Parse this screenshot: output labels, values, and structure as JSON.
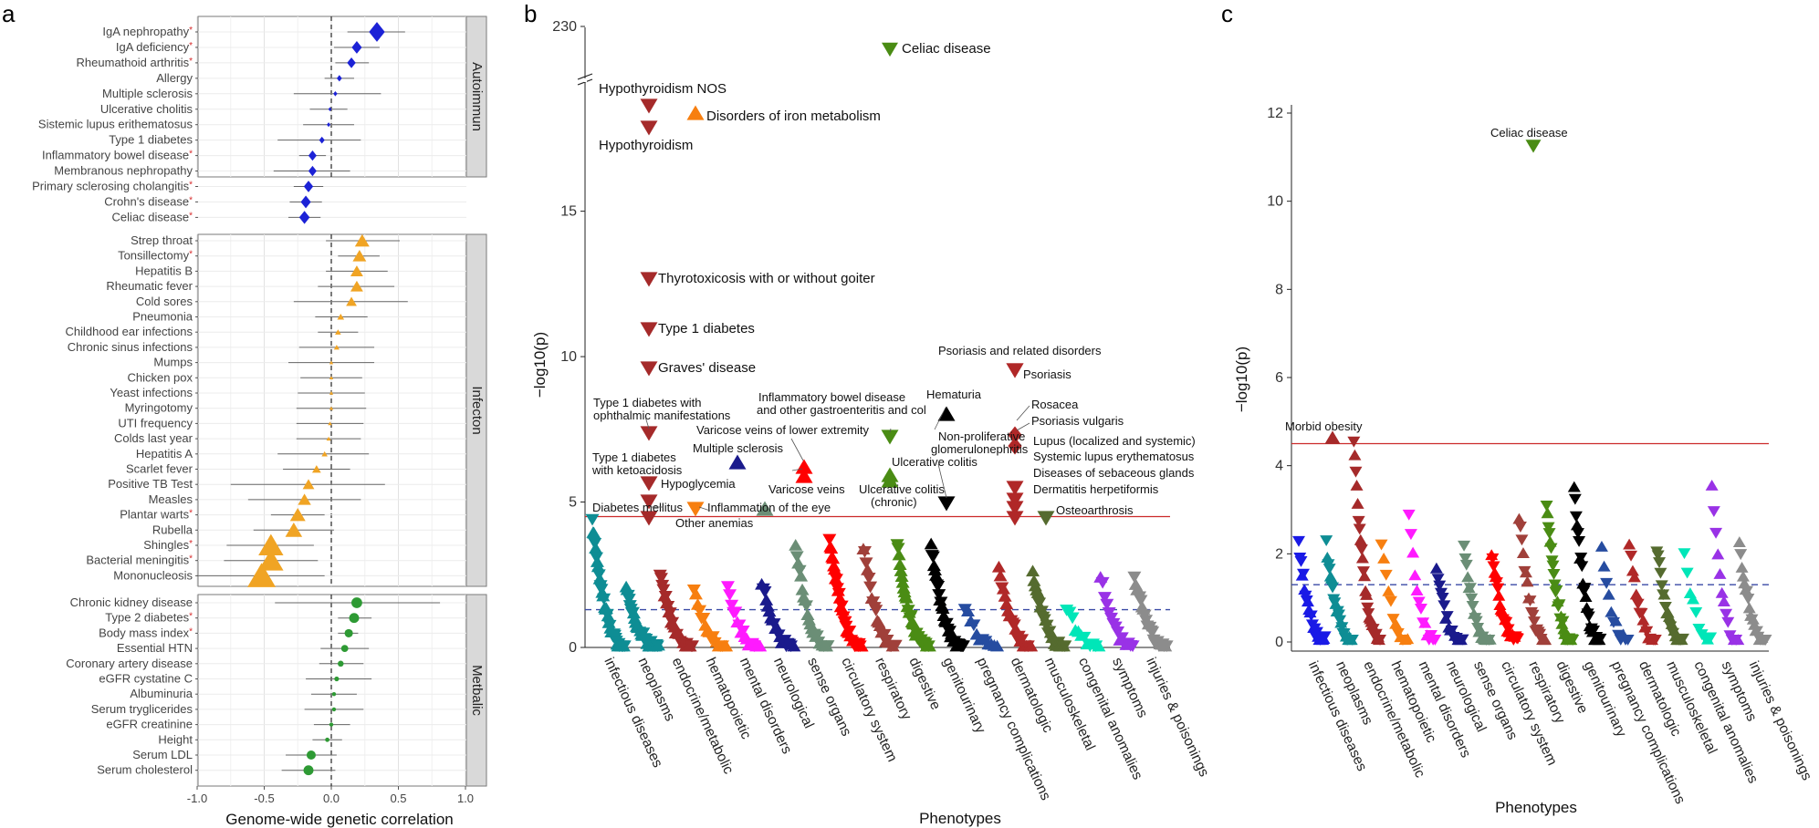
{
  "panels": {
    "a": "a",
    "b": "b",
    "c": "c"
  },
  "chart_data": [
    {
      "type": "scatter",
      "panel": "a",
      "xlabel": "Genome-wide genetic correlation",
      "xlim": [
        -1.0,
        1.0
      ],
      "xticks": [
        "-1.0",
        "-0.5",
        "0.0",
        "0.5",
        "1.0"
      ],
      "colors": {
        "Autoimmun": "#1c22d6",
        "Infecton": "#f0a424",
        "Metbalic": "#2e9a34",
        "star": "#d62728"
      },
      "groups": [
        {
          "name": "Autoimmun",
          "shape": "diamond",
          "rows": [
            {
              "label": "IgA nephropathy",
              "star": true,
              "rg": 0.34,
              "lo": 0.12,
              "hi": 0.55
            },
            {
              "label": "IgA deficiency",
              "star": true,
              "rg": 0.19,
              "lo": 0.02,
              "hi": 0.36
            },
            {
              "label": "Rheumathoid arthritis",
              "star": true,
              "rg": 0.15,
              "lo": 0.03,
              "hi": 0.28
            },
            {
              "label": "Allergy",
              "star": false,
              "rg": 0.06,
              "lo": -0.05,
              "hi": 0.17
            },
            {
              "label": "Multiple sclerosis",
              "star": false,
              "rg": 0.03,
              "lo": -0.28,
              "hi": 0.37
            },
            {
              "label": "Ulcerative cholitis",
              "star": false,
              "rg": -0.01,
              "lo": -0.16,
              "hi": 0.12
            },
            {
              "label": "Sistemic lupus erithematosus",
              "star": false,
              "rg": -0.02,
              "lo": -0.21,
              "hi": 0.17
            },
            {
              "label": "Type 1 diabetes",
              "star": false,
              "rg": -0.07,
              "lo": -0.4,
              "hi": 0.22
            },
            {
              "label": "Inflammatory bowel disease",
              "star": true,
              "rg": -0.14,
              "lo": -0.24,
              "hi": -0.04
            },
            {
              "label": "Membranous nephropathy",
              "star": false,
              "rg": -0.14,
              "lo": -0.43,
              "hi": 0.14
            },
            {
              "label": "Primary sclerosing cholangitis",
              "star": true,
              "rg": -0.17,
              "lo": -0.28,
              "hi": -0.06
            },
            {
              "label": "Crohn's disease",
              "star": true,
              "rg": -0.19,
              "lo": -0.31,
              "hi": -0.07
            },
            {
              "label": "Celiac disease",
              "star": true,
              "rg": -0.2,
              "lo": -0.32,
              "hi": -0.08
            }
          ]
        },
        {
          "name": "Infecton",
          "shape": "triangle",
          "rows": [
            {
              "label": "Strep throat",
              "star": false,
              "rg": 0.23,
              "lo": -0.04,
              "hi": 0.51
            },
            {
              "label": "Tonsillectomy",
              "star": true,
              "rg": 0.21,
              "lo": 0.05,
              "hi": 0.36
            },
            {
              "label": "Hepatitis B",
              "star": false,
              "rg": 0.19,
              "lo": -0.04,
              "hi": 0.42
            },
            {
              "label": "Rheumatic fever",
              "star": false,
              "rg": 0.19,
              "lo": -0.1,
              "hi": 0.47
            },
            {
              "label": "Cold sores",
              "star": false,
              "rg": 0.15,
              "lo": -0.28,
              "hi": 0.57
            },
            {
              "label": "Pneumonia",
              "star": false,
              "rg": 0.07,
              "lo": -0.12,
              "hi": 0.27
            },
            {
              "label": "Childhood ear infections",
              "star": false,
              "rg": 0.05,
              "lo": -0.1,
              "hi": 0.2
            },
            {
              "label": "Chronic sinus infections",
              "star": false,
              "rg": 0.04,
              "lo": -0.24,
              "hi": 0.32
            },
            {
              "label": "Mumps",
              "star": false,
              "rg": 0.0,
              "lo": -0.32,
              "hi": 0.32
            },
            {
              "label": "Chicken pox",
              "star": false,
              "rg": 0.0,
              "lo": -0.23,
              "hi": 0.23
            },
            {
              "label": "Yeast infections",
              "star": false,
              "rg": 0.0,
              "lo": -0.25,
              "hi": 0.25
            },
            {
              "label": "Myringotomy",
              "star": false,
              "rg": 0.0,
              "lo": -0.26,
              "hi": 0.26
            },
            {
              "label": "UTI frequency",
              "star": false,
              "rg": -0.01,
              "lo": -0.26,
              "hi": 0.24
            },
            {
              "label": "Colds last year",
              "star": false,
              "rg": -0.02,
              "lo": -0.26,
              "hi": 0.22
            },
            {
              "label": "Hepatitis A",
              "star": false,
              "rg": -0.05,
              "lo": -0.4,
              "hi": 0.28
            },
            {
              "label": "Scarlet fever",
              "star": false,
              "rg": -0.11,
              "lo": -0.36,
              "hi": 0.14
            },
            {
              "label": "Positive TB Test",
              "star": false,
              "rg": -0.17,
              "lo": -0.75,
              "hi": 0.4
            },
            {
              "label": "Measles",
              "star": false,
              "rg": -0.2,
              "lo": -0.62,
              "hi": 0.22
            },
            {
              "label": "Plantar warts",
              "star": true,
              "rg": -0.25,
              "lo": -0.45,
              "hi": -0.05
            },
            {
              "label": "Rubella",
              "star": false,
              "rg": -0.28,
              "lo": -0.58,
              "hi": 0.02
            },
            {
              "label": "Shingles",
              "star": true,
              "rg": -0.45,
              "lo": -0.78,
              "hi": -0.13
            },
            {
              "label": "Bacterial meningitis",
              "star": true,
              "rg": -0.45,
              "lo": -0.8,
              "hi": -0.1
            },
            {
              "label": "Mononucleosis",
              "star": false,
              "rg": -0.52,
              "lo": -1.0,
              "hi": -0.05
            }
          ]
        },
        {
          "name": "Metbalic",
          "shape": "circle",
          "rows": [
            {
              "label": "Chronic kidney disease",
              "star": false,
              "rg": 0.19,
              "lo": -0.42,
              "hi": 0.81
            },
            {
              "label": "Type 2 diabetes",
              "star": true,
              "rg": 0.17,
              "lo": 0.05,
              "hi": 0.3
            },
            {
              "label": "Body mass index",
              "star": true,
              "rg": 0.13,
              "lo": 0.05,
              "hi": 0.2
            },
            {
              "label": "Essential HTN",
              "star": false,
              "rg": 0.1,
              "lo": -0.08,
              "hi": 0.28
            },
            {
              "label": "Coronary artery disease",
              "star": false,
              "rg": 0.07,
              "lo": -0.09,
              "hi": 0.24
            },
            {
              "label": "eGFR cystatine C",
              "star": false,
              "rg": 0.04,
              "lo": -0.19,
              "hi": 0.3
            },
            {
              "label": "Albuminuria",
              "star": false,
              "rg": 0.02,
              "lo": -0.15,
              "hi": 0.19
            },
            {
              "label": "Serum tryglicerides",
              "star": false,
              "rg": 0.02,
              "lo": -0.2,
              "hi": 0.24
            },
            {
              "label": "eGFR creatinine",
              "star": false,
              "rg": 0.0,
              "lo": -0.13,
              "hi": 0.14
            },
            {
              "label": "Height",
              "star": false,
              "rg": -0.03,
              "lo": -0.14,
              "hi": 0.08
            },
            {
              "label": "Serum LDL",
              "star": false,
              "rg": -0.15,
              "lo": -0.34,
              "hi": 0.04
            },
            {
              "label": "Serum cholesterol",
              "star": false,
              "rg": -0.17,
              "lo": -0.37,
              "hi": 0.03
            }
          ]
        }
      ]
    },
    {
      "type": "scatter",
      "panel": "b",
      "subtype": "manhattan",
      "xlabel": "Phenotypes",
      "ylabel": "−log10(p)",
      "yticks": [
        "0",
        "5",
        "10",
        "15",
        "230"
      ],
      "ylim": [
        0,
        19.5
      ],
      "axis_break": "between 18.5 and 230",
      "threshold_red": 4.5,
      "threshold_blue": 1.3,
      "categories": [
        {
          "name": "infectious diseases",
          "color": "#0e8d94",
          "count": 40,
          "max": 4.3
        },
        {
          "name": "neoplasms",
          "color": "#0e8d94",
          "count": 35,
          "max": 2.0
        },
        {
          "name": "endocrine/metabolic",
          "color": "#a52a2a",
          "count": 30,
          "max": 2.5
        },
        {
          "name": "hematopoietic",
          "color": "#f77f10",
          "count": 18,
          "max": 2.0
        },
        {
          "name": "mental disorders",
          "color": "#ff1aff",
          "count": 18,
          "max": 2.0
        },
        {
          "name": "neurological",
          "color": "#1a1a8c",
          "count": 22,
          "max": 2.3
        },
        {
          "name": "sense organs",
          "color": "#6b8e76",
          "count": 25,
          "max": 3.5
        },
        {
          "name": "circulatory system",
          "color": "#ff0000",
          "count": 38,
          "max": 3.8
        },
        {
          "name": "respiratory",
          "color": "#a0403a",
          "count": 24,
          "max": 3.5
        },
        {
          "name": "digestive",
          "color": "#4a8c14",
          "count": 36,
          "max": 3.5
        },
        {
          "name": "genitourinary",
          "color": "#000000",
          "count": 34,
          "max": 3.5
        },
        {
          "name": "pregnancy complications",
          "color": "#264ca0",
          "count": 12,
          "max": 1.4
        },
        {
          "name": "dermatologic",
          "color": "#b02828",
          "count": 22,
          "max": 2.7
        },
        {
          "name": "musculoskeletal",
          "color": "#556b2f",
          "count": 26,
          "max": 2.6
        },
        {
          "name": "congenital anomalies",
          "color": "#00e6b8",
          "count": 12,
          "max": 1.4
        },
        {
          "name": "symptoms",
          "color": "#9932e6",
          "count": 16,
          "max": 2.5
        },
        {
          "name": "injuries & poisonings",
          "color": "#8c8c8c",
          "count": 26,
          "max": 2.5
        }
      ],
      "highlights": [
        {
          "label": "Celiac disease",
          "y": 21.3,
          "cat": 9,
          "dir": "down",
          "color": "#4a8c14"
        },
        {
          "label": "Hypothyroidism NOS",
          "y": 18.4,
          "cat": 2,
          "dir": "down",
          "color": "#a52a2a"
        },
        {
          "label": "Hypothyroidism",
          "y": 17.6,
          "cat": 2,
          "dir": "down",
          "color": "#a52a2a"
        },
        {
          "label": "Disorders of iron metabolism",
          "y": 18.3,
          "cat": 3,
          "dir": "up",
          "color": "#f77f10"
        },
        {
          "label": "Thyrotoxicosis with or without goiter",
          "y": 12.8,
          "cat": 2,
          "dir": "down",
          "color": "#a52a2a"
        },
        {
          "label": "Type 1 diabetes",
          "y": 11.0,
          "cat": 2,
          "dir": "down",
          "color": "#a52a2a"
        },
        {
          "label": "Graves' disease",
          "y": 9.8,
          "cat": 2,
          "dir": "down",
          "color": "#a52a2a"
        },
        {
          "label": "Psoriasis and related disorders",
          "y": 9.8,
          "cat": 12,
          "dir": "down",
          "color": "#b02828"
        },
        {
          "label": "Psoriasis",
          "y": 9.8,
          "cat": 12,
          "dir": "down",
          "color": "#b02828"
        },
        {
          "label": "Type 1 diabetes with ophthalmic manifestations",
          "y": 7.4,
          "cat": 2,
          "dir": "down",
          "color": "#a52a2a"
        },
        {
          "label": "Inflammatory bowel disease and other gastroenteritis and col",
          "y": 7.2,
          "cat": 9,
          "dir": "down",
          "color": "#4a8c14"
        },
        {
          "label": "Hematuria",
          "y": 8.0,
          "cat": 10,
          "dir": "up",
          "color": "#000000"
        },
        {
          "label": "Rosacea",
          "y": 7.4,
          "cat": 12,
          "dir": "diamond",
          "color": "#b02828"
        },
        {
          "label": "Psoriasis vulgaris",
          "y": 7.0,
          "cat": 12,
          "dir": "diamond",
          "color": "#b02828"
        },
        {
          "label": "Varicose veins of lower extremity",
          "y": 6.1,
          "cat": 7,
          "dir": "up",
          "color": "#ff0000"
        },
        {
          "label": "Non-proliferative glomerulonephritis",
          "y": 4.9,
          "cat": 10,
          "dir": "down",
          "color": "#000000"
        },
        {
          "label": "Multiple sclerosis",
          "y": 6.4,
          "cat": 5,
          "dir": "up",
          "color": "#1a1a8c"
        },
        {
          "label": "Ulcerative colitis",
          "y": 5.9,
          "cat": 9,
          "dir": "up",
          "color": "#4a8c14"
        },
        {
          "label": "Lupus (localized and systemic)",
          "y": 5.6,
          "cat": 12,
          "dir": "down",
          "color": "#b02828"
        },
        {
          "label": "Systemic lupus erythematosus",
          "y": 5.1,
          "cat": 12,
          "dir": "down",
          "color": "#b02828"
        },
        {
          "label": "Type 1 diabetes with ketoacidosis",
          "y": 5.6,
          "cat": 2,
          "dir": "down",
          "color": "#a52a2a"
        },
        {
          "label": "Hypoglycemia",
          "y": 5.0,
          "cat": 2,
          "dir": "down",
          "color": "#a52a2a"
        },
        {
          "label": "Varicose veins",
          "y": 5.9,
          "cat": 7,
          "dir": "up",
          "color": "#ff0000"
        },
        {
          "label": "Ulcerative colitis (chronic)",
          "y": 5.5,
          "cat": 9,
          "dir": "up",
          "color": "#4a8c14"
        },
        {
          "label": "Diseases of sebaceous glands",
          "y": 4.9,
          "cat": 12,
          "dir": "down",
          "color": "#b02828"
        },
        {
          "label": "Dermatitis herpetiformis",
          "y": 4.5,
          "cat": 12,
          "dir": "down",
          "color": "#b02828"
        },
        {
          "label": "Diabetes mellitus",
          "y": 4.7,
          "cat": 2,
          "dir": "down",
          "color": "#a52a2a"
        },
        {
          "label": "Inflammation of the eye",
          "y": 4.8,
          "cat": 6,
          "dir": "up",
          "color": "#6b8e76"
        },
        {
          "label": "Other anemias",
          "y": 4.8,
          "cat": 3,
          "dir": "down",
          "color": "#f77f10"
        },
        {
          "label": "Osteoarthrosis",
          "y": 4.5,
          "cat": 13,
          "dir": "down",
          "color": "#556b2f"
        }
      ]
    },
    {
      "type": "scatter",
      "panel": "c",
      "subtype": "manhattan",
      "xlabel": "Phenotypes",
      "ylabel": "−log10(p)",
      "yticks": [
        "0",
        "2",
        "4",
        "6",
        "8",
        "10",
        "12"
      ],
      "ylim": [
        -0.2,
        12.2
      ],
      "threshold_red": 4.5,
      "threshold_blue": 1.3,
      "categories": [
        {
          "name": "infectious diseases",
          "color": "#1a1ae6",
          "count": 24,
          "max": 2.2
        },
        {
          "name": "neoplasms",
          "color": "#0e8d94",
          "count": 26,
          "max": 2.2
        },
        {
          "name": "endocrine/metabolic",
          "color": "#a52a2a",
          "count": 28,
          "max": 4.5
        },
        {
          "name": "hematopoietic",
          "color": "#f77f10",
          "count": 12,
          "max": 2.3
        },
        {
          "name": "mental disorders",
          "color": "#ff1aff",
          "count": 14,
          "max": 2.9
        },
        {
          "name": "neurological",
          "color": "#1a1a8c",
          "count": 18,
          "max": 1.6
        },
        {
          "name": "sense organs",
          "color": "#6b8e76",
          "count": 22,
          "max": 2.1
        },
        {
          "name": "circulatory system",
          "color": "#ff0000",
          "count": 26,
          "max": 2.1
        },
        {
          "name": "respiratory",
          "color": "#a0403a",
          "count": 20,
          "max": 2.9
        },
        {
          "name": "digestive",
          "color": "#4a8c14",
          "count": 30,
          "max": 3.1
        },
        {
          "name": "genitourinary",
          "color": "#000000",
          "count": 28,
          "max": 3.5
        },
        {
          "name": "pregnancy complications",
          "color": "#264ca0",
          "count": 12,
          "max": 2.1
        },
        {
          "name": "dermatologic",
          "color": "#b02828",
          "count": 16,
          "max": 2.3
        },
        {
          "name": "musculoskeletal",
          "color": "#556b2f",
          "count": 22,
          "max": 2.1
        },
        {
          "name": "congenital anomalies",
          "color": "#00e6b8",
          "count": 10,
          "max": 2.1
        },
        {
          "name": "symptoms",
          "color": "#9932e6",
          "count": 14,
          "max": 3.5
        },
        {
          "name": "injuries & poisonings",
          "color": "#8c8c8c",
          "count": 22,
          "max": 2.2
        }
      ],
      "highlights": [
        {
          "label": "Celiac disease",
          "y": 11.2,
          "cat": 9,
          "dir": "down",
          "color": "#4a8c14"
        },
        {
          "label": "Morbid obesity",
          "y": 4.5,
          "cat": 2,
          "dir": "up",
          "color": "#a52a2a"
        }
      ]
    }
  ]
}
